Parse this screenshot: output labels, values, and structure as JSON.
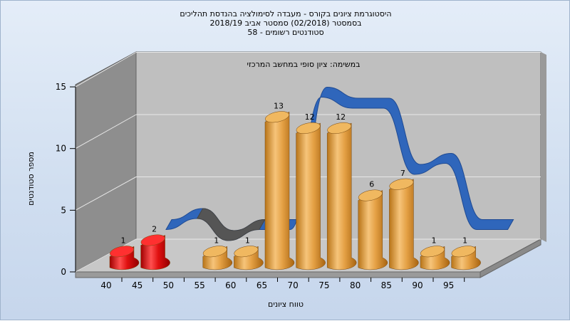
{
  "chart_data": {
    "type": "bar",
    "title_lines": [
      "היסטוגרמת ציונים בקורס - מעבדה לסימולציה בהנדסת תהליכים",
      "בסמסטר (02/2018) סמסטר אביב 2018/19",
      "סטודנטים רשומים - 58"
    ],
    "subtitle": "במשימה: ציון סופי במחשב המרכזי",
    "xlabel": "טווח ציונים",
    "ylabel": "מספר סטודנטים",
    "categories": [
      "40",
      "45",
      "50",
      "55",
      "60",
      "65",
      "70",
      "75",
      "80",
      "85",
      "90",
      "95"
    ],
    "values": [
      1,
      2,
      0,
      1,
      1,
      13,
      12,
      12,
      6,
      7,
      1,
      1
    ],
    "bar_colors": [
      "#e01818",
      "#e01818",
      "#e0a040",
      "#e0a040",
      "#e0a040",
      "#e0a040",
      "#e0a040",
      "#e0a040",
      "#e0a040",
      "#e0a040",
      "#e0a040",
      "#e0a040"
    ],
    "yticks": [
      0,
      5,
      10,
      15
    ],
    "ylim": [
      0,
      15
    ],
    "grid": true,
    "colors": {
      "low": "#e01818",
      "pass": "#e0a040",
      "ribbon": "#2f66bb",
      "ribbon_low": "#555555",
      "wall": "#bfbfbf",
      "side_wall": "#8e8e8e"
    }
  }
}
